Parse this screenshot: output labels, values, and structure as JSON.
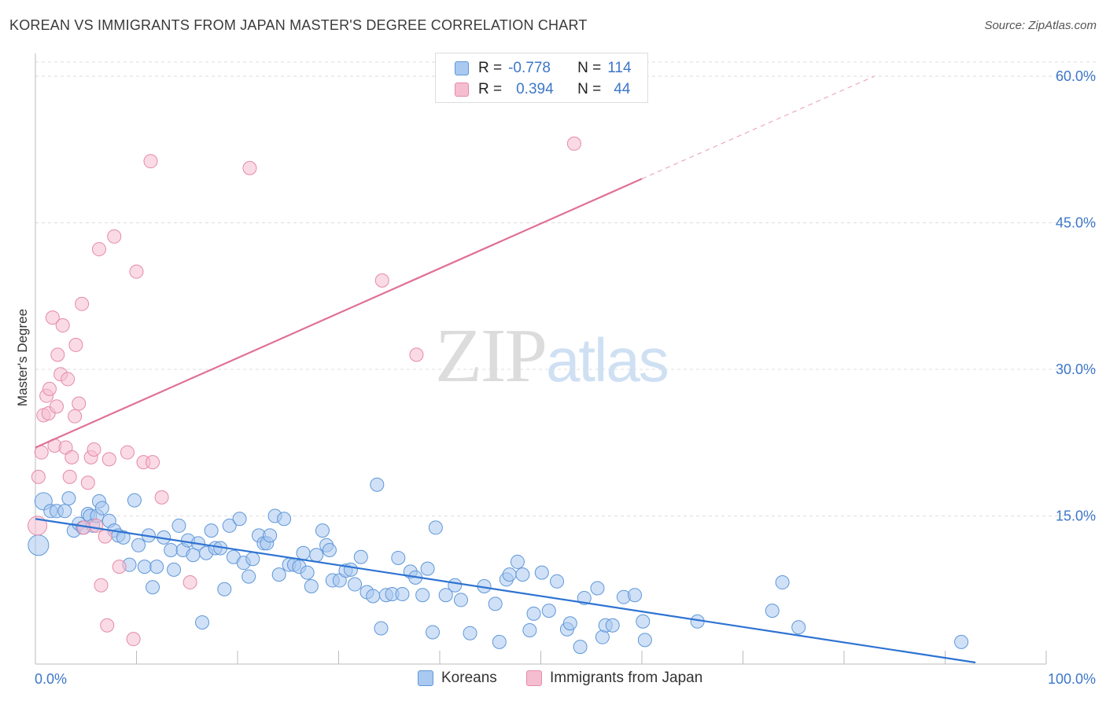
{
  "header": {
    "title": "KOREAN VS IMMIGRANTS FROM JAPAN MASTER'S DEGREE CORRELATION CHART",
    "source": "Source: ZipAtlas.com"
  },
  "watermark": {
    "part1": "ZIP",
    "part2": "atlas"
  },
  "legend": {
    "rows": [
      {
        "r_label": "R =",
        "r_value": "-0.778",
        "n_label": "N =",
        "n_value": "114"
      },
      {
        "r_label": "R =",
        "r_value": "0.394",
        "n_label": "N =",
        "n_value": "44"
      }
    ]
  },
  "bottom_legend": {
    "koreans": "Koreans",
    "japan": "Immigrants from Japan"
  },
  "colors": {
    "blue_fill": "#a9c9f0",
    "blue_stroke": "#5f97d8",
    "blue_line": "#2e73d2",
    "pink_fill": "#f5bed0",
    "pink_stroke": "#e58aa8",
    "pink_line": "#e07098",
    "tick_text": "#3d77c9",
    "grid": "#dddddd"
  },
  "chart_data": {
    "type": "scatter",
    "title": "KOREAN VS IMMIGRANTS FROM JAPAN MASTER'S DEGREE CORRELATION CHART",
    "ylabel": "Master's Degree",
    "xlim": [
      0,
      100
    ],
    "ylim": [
      0,
      60
    ],
    "x_tick_labels": [
      "0.0%",
      "100.0%"
    ],
    "y_tick_labels": [
      "15.0%",
      "30.0%",
      "45.0%",
      "60.0%"
    ],
    "y_ticks": [
      15,
      30,
      45,
      60
    ],
    "grid": true,
    "series": [
      {
        "name": "Koreans",
        "R": -0.778,
        "N": 114,
        "trend": {
          "x": [
            0,
            93
          ],
          "y": [
            14.7,
            0
          ]
        },
        "points": [
          [
            0.3,
            12
          ],
          [
            0.8,
            16.5
          ],
          [
            1.5,
            15.5
          ],
          [
            2.1,
            15.5
          ],
          [
            2.9,
            15.5
          ],
          [
            3.3,
            16.8
          ],
          [
            3.8,
            13.5
          ],
          [
            4.3,
            14.2
          ],
          [
            4.7,
            13.8
          ],
          [
            5.2,
            15.2
          ],
          [
            5.4,
            15
          ],
          [
            5.7,
            14
          ],
          [
            6.1,
            15
          ],
          [
            6.3,
            16.5
          ],
          [
            6.6,
            15.8
          ],
          [
            7.3,
            14.5
          ],
          [
            7.8,
            13.5
          ],
          [
            8.2,
            13
          ],
          [
            8.7,
            12.8
          ],
          [
            9.3,
            10
          ],
          [
            9.8,
            16.6
          ],
          [
            10.2,
            12
          ],
          [
            10.8,
            9.8
          ],
          [
            11.2,
            13
          ],
          [
            11.6,
            7.7
          ],
          [
            12,
            9.8
          ],
          [
            12.7,
            12.8
          ],
          [
            13.4,
            11.5
          ],
          [
            13.7,
            9.5
          ],
          [
            14.2,
            14
          ],
          [
            14.6,
            11.5
          ],
          [
            15.1,
            12.5
          ],
          [
            15.6,
            11
          ],
          [
            16.1,
            12.2
          ],
          [
            16.5,
            4.1
          ],
          [
            16.9,
            11.2
          ],
          [
            17.4,
            13.5
          ],
          [
            17.8,
            11.7
          ],
          [
            18.3,
            11.7
          ],
          [
            18.7,
            7.5
          ],
          [
            19.2,
            14
          ],
          [
            19.6,
            10.8
          ],
          [
            20.2,
            14.7
          ],
          [
            20.6,
            10.2
          ],
          [
            21.1,
            8.8
          ],
          [
            21.5,
            10.6
          ],
          [
            22.1,
            13
          ],
          [
            22.6,
            12.2
          ],
          [
            22.9,
            12.2
          ],
          [
            23.2,
            13
          ],
          [
            23.7,
            15
          ],
          [
            24.1,
            9
          ],
          [
            24.6,
            14.7
          ],
          [
            25.1,
            10
          ],
          [
            25.6,
            10
          ],
          [
            26.1,
            9.8
          ],
          [
            26.5,
            11.2
          ],
          [
            26.9,
            9.2
          ],
          [
            27.3,
            7.8
          ],
          [
            27.8,
            11
          ],
          [
            28.4,
            13.5
          ],
          [
            28.8,
            12
          ],
          [
            29.1,
            11.5
          ],
          [
            29.4,
            8.4
          ],
          [
            30.1,
            8.4
          ],
          [
            30.7,
            9.4
          ],
          [
            31.2,
            9.5
          ],
          [
            31.6,
            8
          ],
          [
            32.2,
            10.8
          ],
          [
            32.8,
            7.2
          ],
          [
            33.4,
            6.8
          ],
          [
            33.8,
            18.2
          ],
          [
            34.2,
            3.5
          ],
          [
            34.7,
            6.9
          ],
          [
            35.3,
            7
          ],
          [
            35.9,
            10.7
          ],
          [
            36.3,
            7
          ],
          [
            37.1,
            9.3
          ],
          [
            37.6,
            8.7
          ],
          [
            38.3,
            6.9
          ],
          [
            38.8,
            9.6
          ],
          [
            39.3,
            3.1
          ],
          [
            39.6,
            13.8
          ],
          [
            40.6,
            6.9
          ],
          [
            41.5,
            7.9
          ],
          [
            42.1,
            6.4
          ],
          [
            43,
            3
          ],
          [
            44.4,
            7.8
          ],
          [
            45.5,
            6
          ],
          [
            45.9,
            2.1
          ],
          [
            46.6,
            8.5
          ],
          [
            46.9,
            9
          ],
          [
            47.7,
            10.3
          ],
          [
            48.2,
            9
          ],
          [
            48.9,
            3.3
          ],
          [
            49.3,
            5
          ],
          [
            50.1,
            9.2
          ],
          [
            50.8,
            5.3
          ],
          [
            51.6,
            8.3
          ],
          [
            52.6,
            3.4
          ],
          [
            52.9,
            4
          ],
          [
            53.9,
            1.6
          ],
          [
            54.3,
            6.6
          ],
          [
            55.6,
            7.6
          ],
          [
            56.1,
            2.6
          ],
          [
            56.4,
            3.8
          ],
          [
            57.1,
            3.8
          ],
          [
            58.2,
            6.7
          ],
          [
            59.3,
            6.9
          ],
          [
            60.1,
            4.2
          ],
          [
            60.3,
            2.3
          ],
          [
            65.5,
            4.2
          ],
          [
            72.9,
            5.3
          ],
          [
            73.9,
            8.2
          ],
          [
            75.5,
            3.6
          ],
          [
            91.6,
            2.1
          ]
        ]
      },
      {
        "name": "Immigrants from Japan",
        "R": 0.394,
        "N": 44,
        "trend": {
          "x": [
            0,
            60
          ],
          "y": [
            22,
            49.5
          ],
          "dashed_to": {
            "x": 83,
            "y": 60
          }
        },
        "points": [
          [
            0.2,
            14
          ],
          [
            0.3,
            19
          ],
          [
            0.6,
            21.5
          ],
          [
            0.8,
            25.3
          ],
          [
            1.1,
            27.3
          ],
          [
            1.3,
            25.5
          ],
          [
            1.4,
            28
          ],
          [
            1.7,
            35.3
          ],
          [
            1.9,
            22.2
          ],
          [
            2.1,
            26.2
          ],
          [
            2.2,
            31.5
          ],
          [
            2.5,
            29.5
          ],
          [
            2.7,
            34.5
          ],
          [
            3,
            22
          ],
          [
            3.2,
            29
          ],
          [
            3.4,
            19
          ],
          [
            3.6,
            21
          ],
          [
            3.9,
            25.2
          ],
          [
            4,
            32.5
          ],
          [
            4.3,
            26.5
          ],
          [
            4.6,
            36.7
          ],
          [
            4.8,
            13.8
          ],
          [
            5.2,
            18.4
          ],
          [
            5.5,
            21
          ],
          [
            5.8,
            21.8
          ],
          [
            6,
            14
          ],
          [
            6.3,
            42.3
          ],
          [
            6.5,
            7.9
          ],
          [
            6.9,
            12.9
          ],
          [
            7.1,
            3.8
          ],
          [
            7.3,
            20.8
          ],
          [
            7.8,
            43.6
          ],
          [
            8.3,
            9.8
          ],
          [
            9.1,
            21.5
          ],
          [
            9.7,
            2.4
          ],
          [
            10,
            40
          ],
          [
            10.7,
            20.5
          ],
          [
            11.6,
            20.5
          ],
          [
            11.4,
            51.3
          ],
          [
            12.5,
            16.9
          ],
          [
            15.3,
            8.2
          ],
          [
            21.2,
            50.6
          ],
          [
            34.3,
            39.1
          ],
          [
            37.7,
            31.5
          ],
          [
            53.3,
            53.1
          ]
        ]
      }
    ]
  }
}
